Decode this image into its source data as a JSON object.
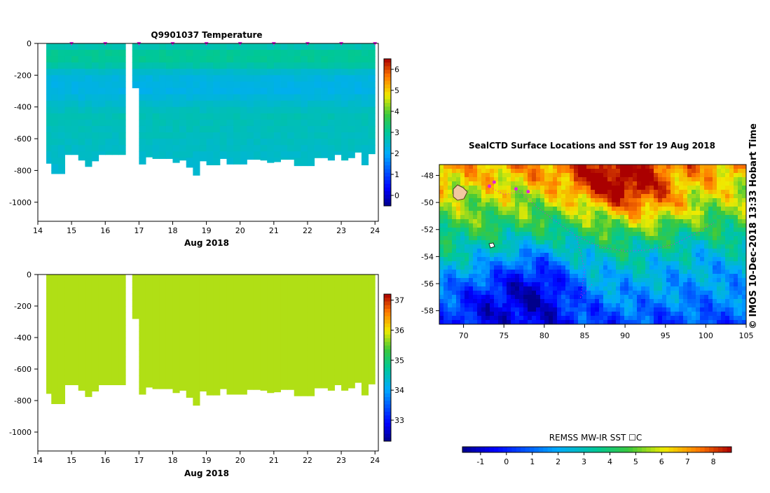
{
  "timestamp": "© IMOS 10-Dec-2018 13:33 Hobart Time",
  "chart_data": [
    {
      "type": "heatmap",
      "title": "Q9901037  Temperature",
      "xlabel": "Aug 2018",
      "ylabel": "",
      "xlim": [
        14,
        24.1
      ],
      "ylim": [
        -1120,
        0
      ],
      "xticks": [
        "14",
        "15",
        "16",
        "17",
        "18",
        "19",
        "20",
        "21",
        "22",
        "23",
        "24"
      ],
      "yticks": [
        "0",
        "-200",
        "-400",
        "-600",
        "-800",
        "-1000"
      ],
      "colorbar": {
        "min": -0.5,
        "max": 6.5,
        "ticks": [
          "0",
          "1",
          "2",
          "3",
          "4",
          "5",
          "6"
        ]
      },
      "profile_days": [
        14.35,
        14.5,
        14.7,
        14.9,
        15.1,
        15.3,
        15.5,
        15.7,
        15.9,
        16.1,
        16.3,
        16.5,
        16.7,
        16.9,
        17.1,
        17.3,
        17.5,
        17.7,
        17.9,
        18.1,
        18.3,
        18.5,
        18.7,
        18.9,
        19.1,
        19.3,
        19.5,
        19.7,
        19.9,
        20.1,
        20.3,
        20.5,
        20.7,
        20.9,
        21.1,
        21.3,
        21.5,
        21.7,
        21.9,
        22.1,
        22.3,
        22.5,
        22.7,
        22.9,
        23.1,
        23.3,
        23.5,
        23.7,
        23.9
      ],
      "max_depth_m": [
        755,
        820,
        820,
        700,
        700,
        735,
        775,
        740,
        700,
        700,
        700,
        700,
        null,
        780,
        760,
        715,
        725,
        725,
        725,
        750,
        735,
        780,
        830,
        740,
        765,
        765,
        725,
        760,
        760,
        760,
        730,
        730,
        735,
        750,
        745,
        730,
        730,
        770,
        770,
        770,
        720,
        720,
        735,
        700,
        735,
        720,
        685,
        765,
        695
      ],
      "values_degC": "approx 2.5 at surface, 3.1 near -80 m, 2.2 at -200 m, 2.7 near -300 m, 2.3 at -700 m",
      "gap": {
        "from_day": 16.6,
        "to_day": 16.95,
        "depth_m": 280
      },
      "surfacing_markers": [
        15,
        16,
        17,
        18,
        19,
        20,
        21,
        22,
        23,
        24
      ]
    },
    {
      "type": "heatmap",
      "title": "",
      "xlabel": "Aug 2018",
      "ylabel": "",
      "xlim": [
        14,
        24.1
      ],
      "ylim": [
        -1120,
        0
      ],
      "xticks": [
        "14",
        "15",
        "16",
        "17",
        "18",
        "19",
        "20",
        "21",
        "22",
        "23",
        "24"
      ],
      "yticks": [
        "0",
        "-200",
        "-400",
        "-600",
        "-800",
        "-1000"
      ],
      "colorbar": {
        "min": 32.3,
        "max": 37.2,
        "ticks": [
          "33",
          "34",
          "35",
          "36",
          "37"
        ]
      },
      "values": "uniform approx 35.8"
    },
    {
      "type": "heatmap",
      "title": "SealCTD Surface Locations and SST for 19 Aug 2018",
      "xlabel": "",
      "ylabel": "",
      "xlim": [
        67,
        105
      ],
      "ylim": [
        -59,
        -47.2
      ],
      "xticks": [
        "70",
        "75",
        "80",
        "85",
        "90",
        "95",
        "100",
        "105"
      ],
      "yticks": [
        "-48",
        "-50",
        "-52",
        "-54",
        "-56",
        "-58"
      ],
      "colorbar": {
        "label": "REMSS MW-IR SST ☐C",
        "min": -1.7,
        "max": 8.7,
        "ticks": [
          "-1",
          "0",
          "1",
          "2",
          "3",
          "4",
          "5",
          "6",
          "7",
          "8"
        ]
      },
      "sst_pattern": "warm 6-8 in north near 85-95E, 3-5 band around 50-53S, cold -1 to 1 south-west of 85E",
      "seal_positions": [
        {
          "lon": 73.8,
          "lat": -48.5
        },
        {
          "lon": 73.2,
          "lat": -48.8
        },
        {
          "lon": 76.5,
          "lat": -49.0
        },
        {
          "lon": 78.0,
          "lat": -49.2
        }
      ]
    }
  ]
}
